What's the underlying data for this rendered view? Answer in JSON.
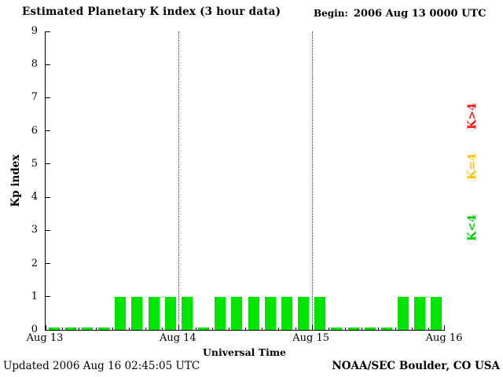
{
  "header": {
    "title": "Estimated Planetary K index (3 hour data)",
    "begin_label": "Begin:",
    "begin_value": "2006 Aug 13 0000 UTC"
  },
  "footer": {
    "updated": "Updated 2006 Aug 16 02:45:05 UTC",
    "source": "NOAA/SEC Boulder, CO USA"
  },
  "chart_data": {
    "type": "bar",
    "title": "Estimated Planetary K index (3 hour data)",
    "xlabel": "Universal Time",
    "ylabel": "Kp index",
    "ylim": [
      0,
      9
    ],
    "y_ticks": [
      0,
      1,
      2,
      3,
      4,
      5,
      6,
      7,
      8,
      9
    ],
    "x_ticks": [
      "Aug 13",
      "Aug 14",
      "Aug 15",
      "Aug 16"
    ],
    "grid": "dotted vertical lines at day boundaries",
    "bar_color": "#00e500",
    "x": [
      "Aug 13 0000",
      "Aug 13 0300",
      "Aug 13 0600",
      "Aug 13 0900",
      "Aug 13 1200",
      "Aug 13 1500",
      "Aug 13 1800",
      "Aug 13 2100",
      "Aug 14 0000",
      "Aug 14 0300",
      "Aug 14 0600",
      "Aug 14 0900",
      "Aug 14 1200",
      "Aug 14 1500",
      "Aug 14 1800",
      "Aug 14 2100",
      "Aug 15 0000",
      "Aug 15 0300",
      "Aug 15 0600",
      "Aug 15 0900",
      "Aug 15 1200",
      "Aug 15 1500",
      "Aug 15 1800",
      "Aug 15 2100"
    ],
    "values": [
      0,
      0,
      0,
      0,
      1,
      1,
      1,
      1,
      1,
      0,
      1,
      1,
      1,
      1,
      1,
      1,
      1,
      0,
      0,
      0,
      0,
      1,
      1,
      1
    ],
    "legend": [
      {
        "label": "K>4",
        "color": "#ff1010"
      },
      {
        "label": "K=4",
        "color": "#ffc400"
      },
      {
        "label": "K<4",
        "color": "#00d000"
      }
    ],
    "legend_position": "right, rotated vertical"
  }
}
